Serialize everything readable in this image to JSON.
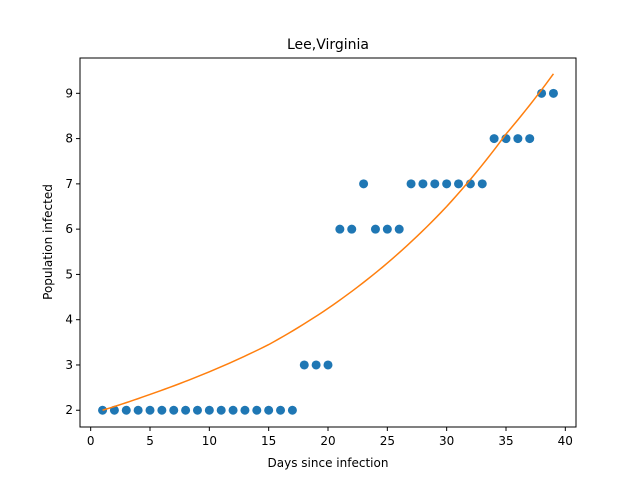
{
  "chart_data": {
    "type": "scatter",
    "title": "Lee,Virginia",
    "xlabel": "Days since infection",
    "ylabel": "Population infected",
    "xlim": [
      -0.9,
      40.9
    ],
    "ylim": [
      1.63,
      9.78
    ],
    "xticks": [
      0,
      5,
      10,
      15,
      20,
      25,
      30,
      35,
      40
    ],
    "yticks": [
      2,
      3,
      4,
      5,
      6,
      7,
      8,
      9
    ],
    "grid": false,
    "legend": "none",
    "colors": {
      "points": "#1f77b4",
      "fit": "#ff7f0e"
    },
    "series": [
      {
        "kind": "scatter",
        "x": [
          1,
          2,
          3,
          4,
          5,
          6,
          7,
          8,
          9,
          10,
          11,
          12,
          13,
          14,
          15,
          16,
          17,
          18,
          19,
          20,
          21,
          22,
          23,
          24,
          25,
          26,
          27,
          28,
          29,
          30,
          31,
          32,
          33,
          34,
          35,
          36,
          37,
          38,
          39
        ],
        "y": [
          2,
          2,
          2,
          2,
          2,
          2,
          2,
          2,
          2,
          2,
          2,
          2,
          2,
          2,
          2,
          2,
          2,
          3,
          3,
          3,
          6,
          6,
          7,
          6,
          6,
          6,
          7,
          7,
          7,
          7,
          7,
          7,
          7,
          8,
          8,
          8,
          8,
          9,
          9
        ]
      },
      {
        "kind": "line",
        "x": [
          1,
          5,
          10,
          15,
          20,
          25,
          30,
          35,
          39
        ],
        "y": [
          2.0,
          2.35,
          2.85,
          3.45,
          4.25,
          5.25,
          6.5,
          8.1,
          9.43
        ]
      }
    ]
  }
}
